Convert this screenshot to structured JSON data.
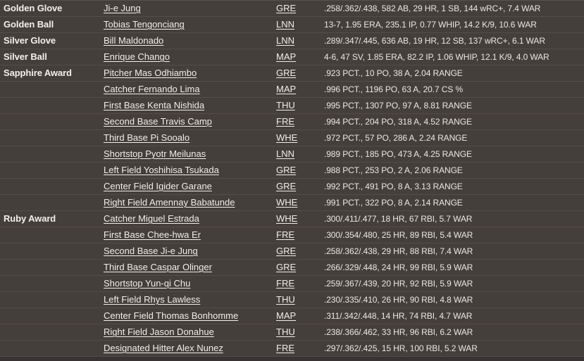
{
  "colors": {
    "background": "#453F3C",
    "row_divider": "#524D4A",
    "bottom_strip": "#393433",
    "text": "#EDEBE5",
    "link_text": "#F0EEE8"
  },
  "awards_table": {
    "rows": [
      {
        "award": "Golden Glove",
        "player": "Ji-e Jung",
        "team": "GRE",
        "stats": ".258/.362/.438, 582 AB, 29 HR, 1 SB, 144 wRC+, 7.4 WAR"
      },
      {
        "award": "Golden Ball",
        "player": "Tobias Tengonciang",
        "team": "LNN",
        "stats": "13-7, 1.95 ERA, 235.1 IP, 0.77 WHIP, 14.2 K/9, 10.6 WAR"
      },
      {
        "award": "Silver Glove",
        "player": "Bill Maldonado",
        "team": "LNN",
        "stats": ".289/.347/.445, 636 AB, 19 HR, 12 SB, 137 wRC+, 6.1 WAR"
      },
      {
        "award": "Silver Ball",
        "player": "Enrique Chango",
        "team": "MAP",
        "stats": "4-6, 47 SV, 1.85 ERA, 82.2 IP, 1.06 WHIP, 12.1 K/9, 4.0 WAR"
      },
      {
        "award": "Sapphire Award",
        "player": "Pitcher Mas Odhiambo",
        "team": "GRE",
        "stats": ".923 PCT., 10 PO, 38 A, 2.04 RANGE"
      },
      {
        "award": "",
        "player": "Catcher Fernando Lima",
        "team": "MAP",
        "stats": ".996 PCT., 1196 PO, 63 A, 20.7 CS %"
      },
      {
        "award": "",
        "player": "First Base Kenta Nishida",
        "team": "THU",
        "stats": ".995 PCT., 1307 PO, 97 A, 8.81 RANGE"
      },
      {
        "award": "",
        "player": "Second Base Travis Camp",
        "team": "FRE",
        "stats": ".994 PCT., 204 PO, 318 A, 4.52 RANGE"
      },
      {
        "award": "",
        "player": "Third Base Pi Sooalo",
        "team": "WHE",
        "stats": ".972 PCT., 57 PO, 286 A, 2.24 RANGE"
      },
      {
        "award": "",
        "player": "Shortstop Pyotr Meilunas",
        "team": "LNN",
        "stats": ".989 PCT., 185 PO, 473 A, 4.25 RANGE"
      },
      {
        "award": "",
        "player": "Left Field Yoshihisa Tsukada",
        "team": "GRE",
        "stats": ".988 PCT., 253 PO, 2 A, 2.06 RANGE"
      },
      {
        "award": "",
        "player": "Center Field Igider Garane",
        "team": "GRE",
        "stats": ".992 PCT., 491 PO, 8 A, 3.13 RANGE"
      },
      {
        "award": "",
        "player": "Right Field Amennay Babatunde",
        "team": "WHE",
        "stats": ".991 PCT., 322 PO, 8 A, 2.14 RANGE"
      },
      {
        "award": "Ruby Award",
        "player": "Catcher Miguel Estrada",
        "team": "WHE",
        "stats": ".300/.411/.477, 18 HR, 67 RBI, 5.7 WAR"
      },
      {
        "award": "",
        "player": "First Base Chee-hwa Er",
        "team": "FRE",
        "stats": ".300/.354/.480, 25 HR, 89 RBI, 5.4 WAR"
      },
      {
        "award": "",
        "player": "Second Base Ji-e Jung",
        "team": "GRE",
        "stats": ".258/.362/.438, 29 HR, 88 RBI, 7.4 WAR"
      },
      {
        "award": "",
        "player": "Third Base Caspar Olinger",
        "team": "GRE",
        "stats": ".266/.329/.448, 24 HR, 99 RBI, 5.9 WAR"
      },
      {
        "award": "",
        "player": "Shortstop Yun-qi Chu",
        "team": "FRE",
        "stats": ".259/.367/.439, 20 HR, 92 RBI, 5.9 WAR"
      },
      {
        "award": "",
        "player": "Left Field Rhys Lawless",
        "team": "THU",
        "stats": ".230/.335/.410, 26 HR, 90 RBI, 4.8 WAR"
      },
      {
        "award": "",
        "player": "Center Field Thomas Bonhomme",
        "team": "MAP",
        "stats": ".311/.342/.448, 14 HR, 74 RBI, 4.7 WAR"
      },
      {
        "award": "",
        "player": "Right Field Jason Donahue",
        "team": "THU",
        "stats": ".238/.366/.462, 33 HR, 96 RBI, 6.2 WAR"
      },
      {
        "award": "",
        "player": "Designated Hitter Alex Nunez",
        "team": "FRE",
        "stats": ".297/.362/.425, 15 HR, 100 RBI, 5.2 WAR"
      }
    ]
  }
}
